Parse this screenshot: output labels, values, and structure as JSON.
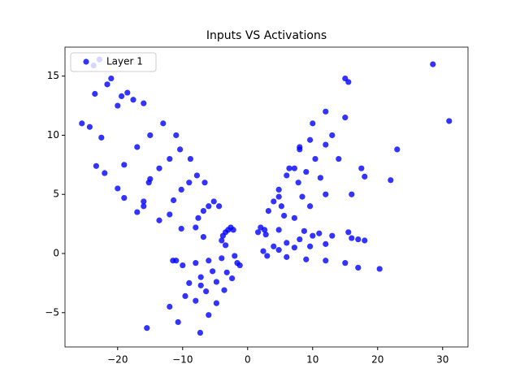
{
  "chart_data": {
    "type": "scatter",
    "title": "Inputs VS Activations",
    "xlim": [
      -28.1,
      33.9
    ],
    "ylim": [
      -7.9,
      17.45
    ],
    "xticks": [
      {
        "value": -20,
        "label": "−20"
      },
      {
        "value": -10,
        "label": "−10"
      },
      0,
      10,
      20,
      30
    ],
    "yticks": [
      {
        "value": -5,
        "label": "−5"
      },
      0,
      5,
      10,
      15
    ],
    "legend": "upper left",
    "series": [
      {
        "name": "Layer 1",
        "color": "#0000ff",
        "x": [
          -25.5,
          -24.3,
          -23.5,
          -22.8,
          -23.7,
          -21.6,
          -21,
          -23.3,
          -22,
          -22.5,
          -20,
          -19.4,
          -18.5,
          -17.6,
          -16,
          -15,
          -19,
          -16,
          -11.5,
          -11,
          -15.5,
          -10.7,
          -7.3,
          28.5,
          31,
          23,
          22,
          20.3,
          17,
          15,
          15.5,
          17.5,
          18,
          16,
          18,
          17,
          16,
          13,
          15.5,
          11,
          8.7,
          -2.6,
          -5.2,
          -7.8,
          -10.4,
          -13,
          -3,
          -6,
          -9,
          -12,
          -15,
          -3.4,
          -6.8,
          -10.2,
          -13.6,
          -17,
          -3.8,
          -7.6,
          -11.4,
          -15.2,
          -19,
          -4,
          -8,
          -12,
          -16,
          -20,
          -3.4,
          -6.8,
          -10.2,
          -13.6,
          -17,
          -2.2,
          -4.4,
          -6.6,
          -8.8,
          -11,
          -2,
          -4,
          -6,
          -8,
          -10,
          -1.6,
          -3.2,
          -4.8,
          -6.4,
          -8,
          -1.2,
          -2.4,
          -3.6,
          -4.8,
          -6,
          -7.2,
          -9.6,
          -12,
          -5.4,
          -7.2,
          -9,
          1.6,
          3.2,
          4.8,
          6.4,
          8,
          2,
          4,
          6,
          8,
          10,
          4.8,
          7.2,
          9.6,
          12,
          2.6,
          5.2,
          7.8,
          10.4,
          13,
          2.8,
          5.6,
          8.4,
          11.2,
          14,
          4.8,
          7.2,
          9.6,
          12,
          9,
          12,
          15,
          2.4,
          4.8,
          7.2,
          9.6,
          12,
          3,
          6,
          9,
          12,
          15,
          4,
          6,
          8,
          10
        ],
        "y": [
          11,
          10.7,
          13.5,
          16.4,
          15.9,
          14.3,
          14.8,
          7.4,
          6.8,
          9.8,
          12.5,
          13.3,
          13.6,
          13,
          12.7,
          6.3,
          4.7,
          4,
          -0.6,
          -0.6,
          -6.3,
          -5.8,
          -6.7,
          16,
          11.2,
          8.8,
          6.2,
          -1.3,
          -1.2,
          14.8,
          14.5,
          7.2,
          6.5,
          5,
          1.1,
          1.2,
          1.3,
          1.5,
          1.8,
          1.7,
          1.9,
          2.2,
          4.4,
          6.6,
          8.8,
          11,
          2,
          4,
          6,
          8,
          10,
          1.8,
          3.6,
          5.4,
          7.2,
          9,
          1.5,
          3,
          4.5,
          6,
          7.5,
          1.1,
          2.2,
          3.3,
          4.4,
          5.5,
          0.7,
          1.4,
          2.1,
          2.8,
          3.5,
          2,
          4,
          6,
          8,
          10,
          -0.2,
          -0.4,
          -0.6,
          -0.8,
          -1,
          -0.8,
          -1.6,
          -2.4,
          -3.2,
          -4,
          -1,
          -2.1,
          -3.1,
          -4.2,
          -5.2,
          -2.7,
          -3.6,
          -4.5,
          -1.5,
          -2,
          -2.5,
          1.8,
          3.6,
          5.4,
          7.2,
          9,
          2.2,
          4.4,
          6.6,
          8.8,
          11,
          4.8,
          7.2,
          9.6,
          12,
          2,
          4,
          6,
          8,
          10,
          1.6,
          3.2,
          4.8,
          6.4,
          8,
          2,
          3,
          4,
          5,
          6.9,
          9.2,
          11.5,
          0.2,
          0.3,
          0.5,
          0.6,
          0.8,
          -0.2,
          -0.3,
          -0.5,
          -0.6,
          -0.8,
          0.6,
          0.9,
          1.2,
          1.5
        ]
      }
    ]
  }
}
